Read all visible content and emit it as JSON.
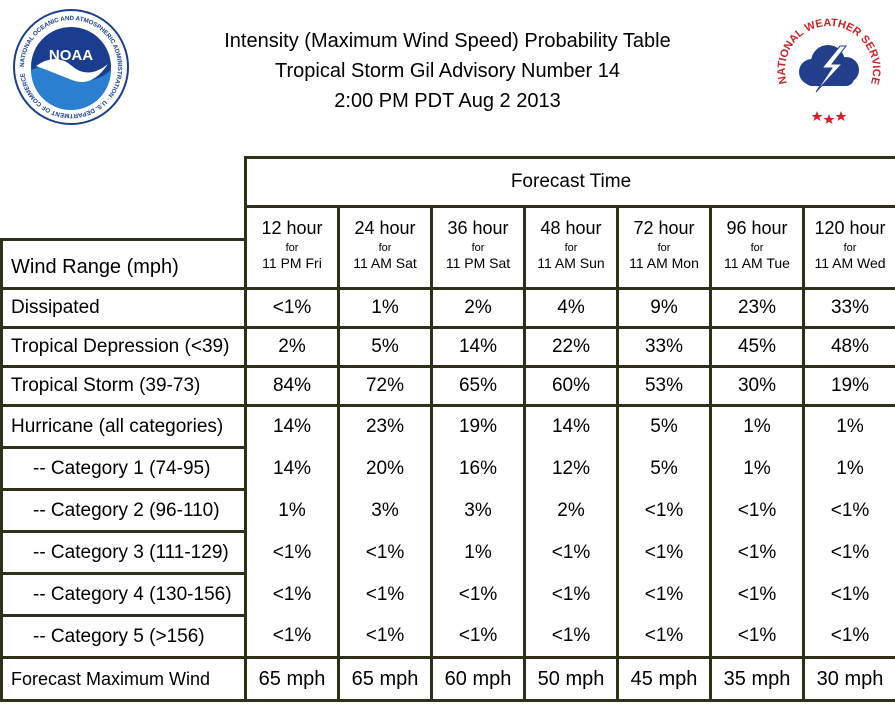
{
  "header": {
    "title_line1": "Intensity (Maximum Wind Speed) Probability Table",
    "title_line2": "Tropical Storm Gil Advisory Number 14",
    "title_line3": "2:00 PM PDT Aug 2 2013"
  },
  "logos": {
    "noaa": {
      "center_text": "NOAA",
      "ring_text": "NATIONAL OCEANIC AND ATMOSPHERIC ADMINISTRATION · U.S. DEPARTMENT OF COMMERCE",
      "colors": {
        "ring": "#1b3d8f",
        "sky": "#1b3d8f",
        "bird": "#ffffff",
        "sea": "#2a7fd1"
      }
    },
    "nws": {
      "ring_text": "NATIONAL WEATHER SERVICE",
      "colors": {
        "ring": "#cc2229",
        "cloud": "#233e8b",
        "bolt": "#ffffff",
        "stars": "#cc2229"
      }
    }
  },
  "table": {
    "forecast_time_label": "Forecast Time",
    "wind_range_label": "Wind Range (mph)",
    "for_label": "for",
    "columns": [
      {
        "hour": "12 hour",
        "time": "11 PM Fri"
      },
      {
        "hour": "24 hour",
        "time": "11 AM Sat"
      },
      {
        "hour": "36 hour",
        "time": "11 PM Sat"
      },
      {
        "hour": "48 hour",
        "time": "11 AM Sun"
      },
      {
        "hour": "72 hour",
        "time": "11 AM Mon"
      },
      {
        "hour": "96 hour",
        "time": "11 AM Tue"
      },
      {
        "hour": "120 hour",
        "time": "11 AM Wed"
      }
    ],
    "rows": [
      {
        "label": "Dissipated",
        "values": [
          "<1%",
          "1%",
          "2%",
          "4%",
          "9%",
          "23%",
          "33%"
        ]
      },
      {
        "label": "Tropical Depression (<39)",
        "values": [
          "2%",
          "5%",
          "14%",
          "22%",
          "33%",
          "45%",
          "48%"
        ]
      },
      {
        "label": "Tropical Storm (39-73)",
        "values": [
          "84%",
          "72%",
          "65%",
          "60%",
          "53%",
          "30%",
          "19%"
        ]
      }
    ],
    "hurricane_rows": [
      {
        "label": "Hurricane (all categories)",
        "values": [
          "14%",
          "23%",
          "19%",
          "14%",
          "5%",
          "1%",
          "1%"
        ]
      },
      {
        "label": "-- Category 1 (74-95)",
        "values": [
          "14%",
          "20%",
          "16%",
          "12%",
          "5%",
          "1%",
          "1%"
        ]
      },
      {
        "label": "-- Category 2 (96-110)",
        "values": [
          "1%",
          "3%",
          "3%",
          "2%",
          "<1%",
          "<1%",
          "<1%"
        ]
      },
      {
        "label": "-- Category 3 (111-129)",
        "values": [
          "<1%",
          "<1%",
          "1%",
          "<1%",
          "<1%",
          "<1%",
          "<1%"
        ]
      },
      {
        "label": "-- Category 4 (130-156)",
        "values": [
          "<1%",
          "<1%",
          "<1%",
          "<1%",
          "<1%",
          "<1%",
          "<1%"
        ]
      },
      {
        "label": "-- Category 5 (>156)",
        "values": [
          "<1%",
          "<1%",
          "<1%",
          "<1%",
          "<1%",
          "<1%",
          "<1%"
        ]
      }
    ],
    "max_wind": {
      "label": "Forecast Maximum Wind",
      "values": [
        "65 mph",
        "65 mph",
        "60 mph",
        "50 mph",
        "45 mph",
        "35 mph",
        "30 mph"
      ]
    }
  }
}
